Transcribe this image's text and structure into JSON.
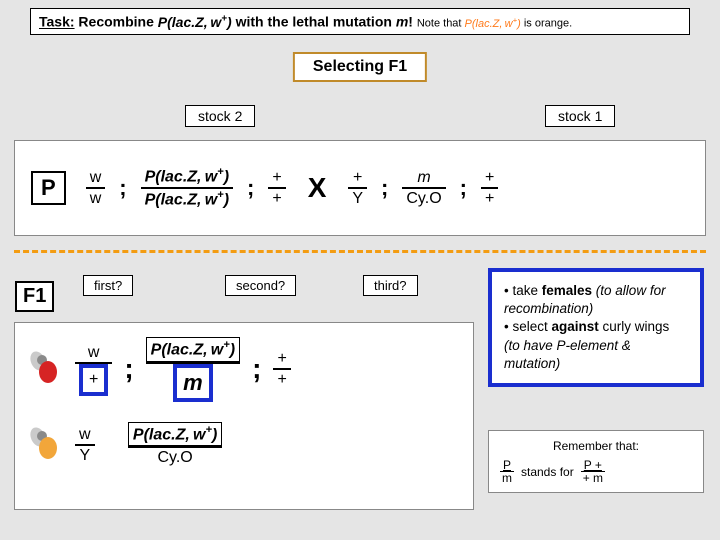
{
  "colors": {
    "page_bg": "#e5e5e5",
    "panel_bg": "#ffffff",
    "accent_border": "#c08a2a",
    "dashed": "#f39c12",
    "blue": "#1a2ecf",
    "orange_text": "#ff7a1a",
    "red_fly": "#d62424",
    "orange_fly": "#f2a63a"
  },
  "task": {
    "label": "Task:",
    "verb": " Recombine ",
    "pelem": "P(lac.Z, w+)",
    "with": " with the lethal mutation ",
    "mut": "m",
    "bang": "! ",
    "note_prefix": "Note that ",
    "note_pelem": "P(lac.Z, w+)",
    "note_suffix": " is orange."
  },
  "selecting": "Selecting F1",
  "stocks": {
    "s2": "stock 2",
    "s1": "stock 1"
  },
  "P": {
    "badge": "P",
    "chr1": {
      "top": "w",
      "bot": "w"
    },
    "chr2": {
      "top": "P(lac.Z, w+)",
      "bot": "P(lac.Z, w+)"
    },
    "chr3": {
      "top": "+",
      "bot": "+"
    },
    "X": "X",
    "m1": {
      "top": "+",
      "bot": "Y"
    },
    "m2": {
      "top": "m",
      "bot": "Cy.O"
    },
    "m3": {
      "top": "+",
      "bot": "+"
    },
    "semi": ";"
  },
  "F1": {
    "badge": "F1",
    "q1": "first?",
    "q2": "second?",
    "q3": "third?",
    "row1": {
      "c1": {
        "top": "w",
        "bot": "+",
        "box": "+"
      },
      "c2": {
        "top": "P(lac.Z, w+)",
        "bot": "m",
        "box": "m"
      },
      "c3": {
        "top": "+",
        "bot": "+",
        "box": "+"
      }
    },
    "row2": {
      "c1": {
        "top": "w",
        "bot": "Y"
      },
      "c2": {
        "top": "P(lac.Z, w+)",
        "bot": "Cy.O"
      }
    },
    "semi": ";"
  },
  "bullets": {
    "l1a": "• take ",
    "l1b": "females",
    "l1c": " (to allow for recombination)",
    "l2a": "• select ",
    "l2b": "against",
    "l2c": " curly wings ",
    "l2d": "(to have P-element & mutation)"
  },
  "remember": {
    "title": "Remember that:",
    "stands": " stands for ",
    "left": {
      "t": "P",
      "b": "m"
    },
    "right": {
      "t": "P  +",
      "b": "+  m"
    }
  }
}
